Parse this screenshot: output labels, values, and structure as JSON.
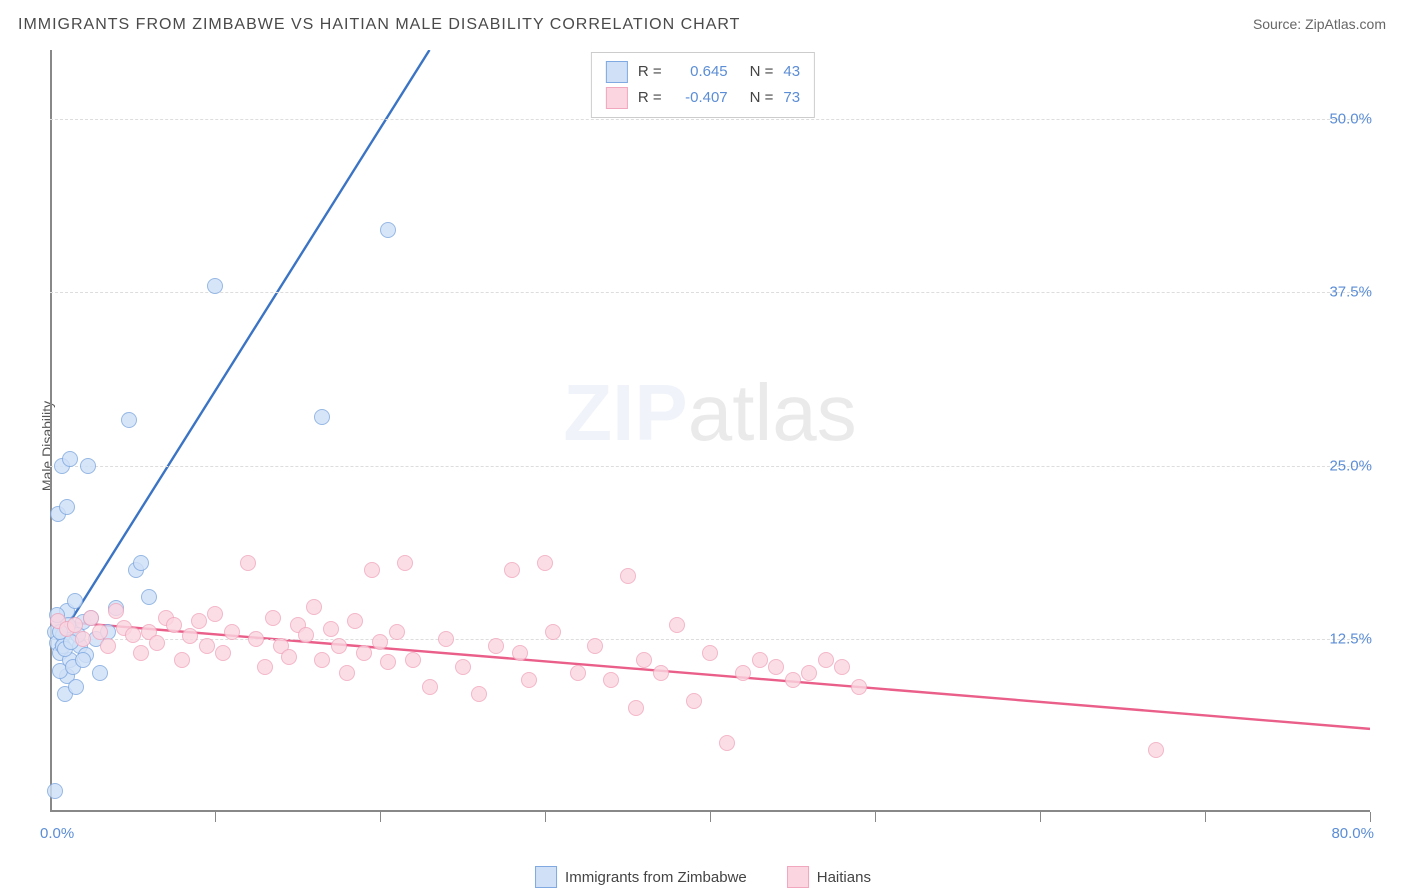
{
  "title": "IMMIGRANTS FROM ZIMBABWE VS HAITIAN MALE DISABILITY CORRELATION CHART",
  "source_label": "Source:",
  "source_name": "ZipAtlas.com",
  "ylabel": "Male Disability",
  "watermark_a": "ZIP",
  "watermark_b": "atlas",
  "chart": {
    "type": "scatter",
    "xlim": [
      0,
      80
    ],
    "ylim": [
      0,
      55
    ],
    "y_ticks": [
      12.5,
      25.0,
      37.5,
      50.0
    ],
    "y_tick_labels": [
      "12.5%",
      "25.0%",
      "37.5%",
      "50.0%"
    ],
    "x_ticks": [
      10,
      20,
      30,
      40,
      50,
      60,
      70,
      80
    ],
    "x_min_label": "0.0%",
    "x_max_label": "80.0%",
    "grid_color": "#dddddd",
    "axis_color": "#888888",
    "background": "#ffffff",
    "marker_radius": 8,
    "marker_border": 1.3,
    "line_width": 2.4
  },
  "legend_top": [
    {
      "r_label": "R =",
      "r": "0.645",
      "n_label": "N =",
      "n": "43",
      "fill": "#cfe0f7",
      "stroke": "#7fa9e0"
    },
    {
      "r_label": "R =",
      "r": "-0.407",
      "n_label": "N =",
      "n": "73",
      "fill": "#fbd6e1",
      "stroke": "#f1a7bd"
    }
  ],
  "legend_bottom": [
    {
      "label": "Immigrants from Zimbabwe",
      "fill": "#cfe0f7",
      "stroke": "#7fa9e0"
    },
    {
      "label": "Haitians",
      "fill": "#fbd6e1",
      "stroke": "#f1a7bd"
    }
  ],
  "series": [
    {
      "name": "zimbabwe",
      "fill": "#cfe0f7",
      "stroke": "#7fa9e0",
      "trend": {
        "color": "#3b74c4",
        "dash_tail": true,
        "x1": 0.3,
        "y1": 12.0,
        "x2": 23,
        "y2": 55
      },
      "points": [
        [
          0.3,
          13.0
        ],
        [
          0.4,
          12.2
        ],
        [
          0.5,
          13.8
        ],
        [
          0.6,
          11.5
        ],
        [
          0.8,
          12.8
        ],
        [
          1.0,
          14.5
        ],
        [
          1.2,
          11.0
        ],
        [
          1.3,
          13.3
        ],
        [
          1.5,
          15.2
        ],
        [
          1.0,
          9.8
        ],
        [
          1.8,
          12.0
        ],
        [
          0.6,
          10.2
        ],
        [
          2.0,
          13.7
        ],
        [
          2.2,
          11.3
        ],
        [
          2.5,
          14.0
        ],
        [
          2.8,
          12.5
        ],
        [
          0.9,
          8.5
        ],
        [
          3.0,
          10.0
        ],
        [
          1.4,
          10.5
        ],
        [
          3.5,
          13.0
        ],
        [
          1.6,
          9.0
        ],
        [
          4.0,
          14.7
        ],
        [
          0.5,
          21.5
        ],
        [
          0.7,
          25.0
        ],
        [
          1.2,
          25.5
        ],
        [
          2.3,
          25.0
        ],
        [
          5.2,
          17.5
        ],
        [
          6.0,
          15.5
        ],
        [
          5.5,
          18.0
        ],
        [
          1.0,
          22.0
        ],
        [
          4.8,
          28.3
        ],
        [
          16.5,
          28.5
        ],
        [
          10.0,
          38.0
        ],
        [
          20.5,
          42.0
        ],
        [
          0.3,
          1.5
        ],
        [
          0.8,
          12.0
        ],
        [
          1.1,
          13.5
        ],
        [
          1.7,
          12.8
        ],
        [
          0.4,
          14.2
        ],
        [
          0.9,
          11.8
        ],
        [
          2.0,
          11.0
        ],
        [
          0.6,
          13.0
        ],
        [
          1.3,
          12.3
        ]
      ]
    },
    {
      "name": "haitians",
      "fill": "#fbd6e1",
      "stroke": "#f1a7bd",
      "trend": {
        "color": "#ea5e8a",
        "dash_tail": false,
        "x1": 0,
        "y1": 13.8,
        "x2": 80,
        "y2": 6.0
      },
      "points": [
        [
          0.5,
          13.8
        ],
        [
          1.0,
          13.2
        ],
        [
          1.5,
          13.5
        ],
        [
          2.0,
          12.5
        ],
        [
          2.5,
          14.0
        ],
        [
          3.0,
          13.0
        ],
        [
          3.5,
          12.0
        ],
        [
          4.0,
          14.5
        ],
        [
          4.5,
          13.3
        ],
        [
          5.0,
          12.8
        ],
        [
          5.5,
          11.5
        ],
        [
          6.0,
          13.0
        ],
        [
          6.5,
          12.2
        ],
        [
          7.0,
          14.0
        ],
        [
          7.5,
          13.5
        ],
        [
          8.0,
          11.0
        ],
        [
          8.5,
          12.7
        ],
        [
          9.0,
          13.8
        ],
        [
          9.5,
          12.0
        ],
        [
          10.0,
          14.3
        ],
        [
          10.5,
          11.5
        ],
        [
          11.0,
          13.0
        ],
        [
          12.0,
          18.0
        ],
        [
          12.5,
          12.5
        ],
        [
          13.0,
          10.5
        ],
        [
          13.5,
          14.0
        ],
        [
          14.0,
          12.0
        ],
        [
          14.5,
          11.2
        ],
        [
          15.0,
          13.5
        ],
        [
          15.5,
          12.8
        ],
        [
          16.0,
          14.8
        ],
        [
          16.5,
          11.0
        ],
        [
          17.0,
          13.2
        ],
        [
          17.5,
          12.0
        ],
        [
          18.0,
          10.0
        ],
        [
          18.5,
          13.8
        ],
        [
          19.0,
          11.5
        ],
        [
          19.5,
          17.5
        ],
        [
          20.0,
          12.3
        ],
        [
          20.5,
          10.8
        ],
        [
          21.0,
          13.0
        ],
        [
          21.5,
          18.0
        ],
        [
          22.0,
          11.0
        ],
        [
          23.0,
          9.0
        ],
        [
          24.0,
          12.5
        ],
        [
          25.0,
          10.5
        ],
        [
          26.0,
          8.5
        ],
        [
          27.0,
          12.0
        ],
        [
          28.0,
          17.5
        ],
        [
          28.5,
          11.5
        ],
        [
          30.0,
          18.0
        ],
        [
          30.5,
          13.0
        ],
        [
          32.0,
          10.0
        ],
        [
          33.0,
          12.0
        ],
        [
          34.0,
          9.5
        ],
        [
          35.0,
          17.0
        ],
        [
          36.0,
          11.0
        ],
        [
          37.0,
          10.0
        ],
        [
          38.0,
          13.5
        ],
        [
          39.0,
          8.0
        ],
        [
          40.0,
          11.5
        ],
        [
          41.0,
          5.0
        ],
        [
          42.0,
          10.0
        ],
        [
          43.0,
          11.0
        ],
        [
          44.0,
          10.5
        ],
        [
          45.0,
          9.5
        ],
        [
          46.0,
          10.0
        ],
        [
          47.0,
          11.0
        ],
        [
          48.0,
          10.5
        ],
        [
          49.0,
          9.0
        ],
        [
          67.0,
          4.5
        ],
        [
          35.5,
          7.5
        ],
        [
          29.0,
          9.5
        ]
      ]
    }
  ]
}
